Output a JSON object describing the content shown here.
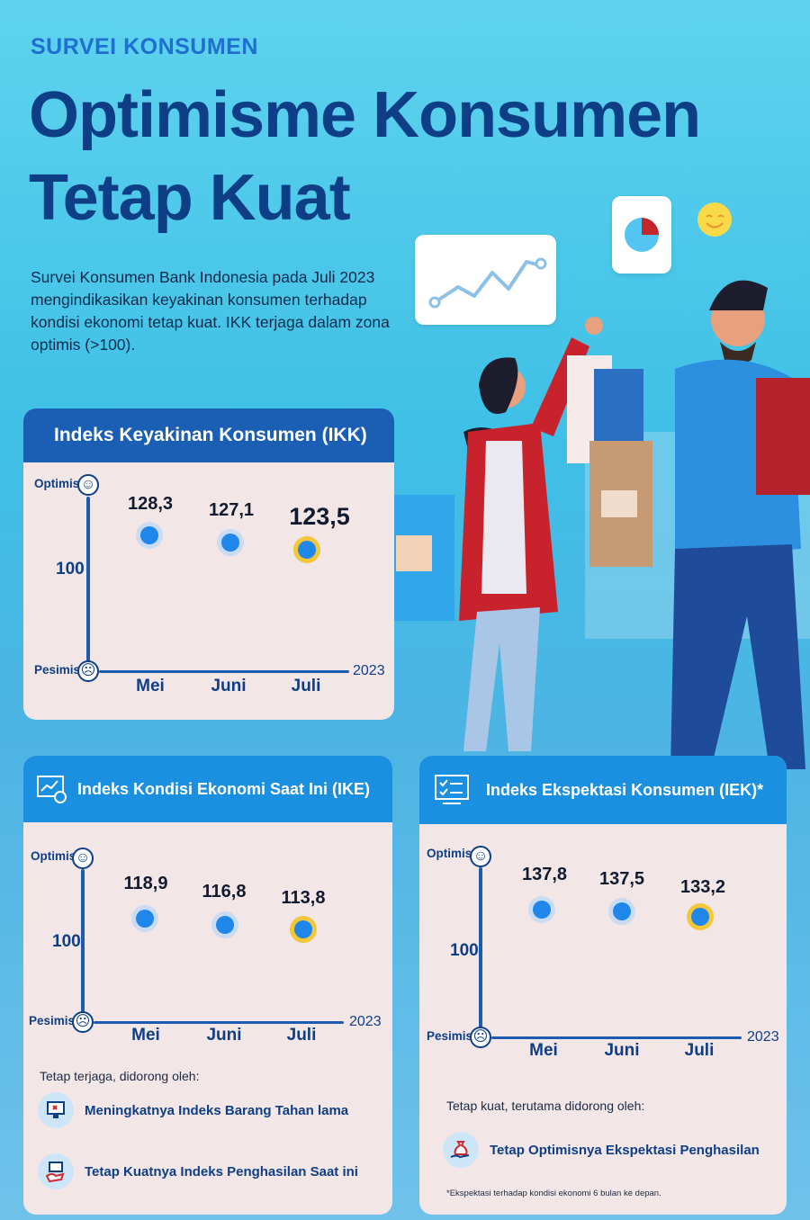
{
  "header": {
    "kicker": "SURVEI KONSUMEN",
    "title_line1": "Optimisme Konsumen",
    "title_line2": "Tetap Kuat",
    "intro": "Survei Konsumen Bank Indonesia pada Juli 2023 mengindikasikan keyakinan konsumen terhadap kondisi ekonomi tetap kuat. IKK terjaga dalam zona optimis (>100)."
  },
  "chart_common": {
    "optimis": "Optimis",
    "pesimis": "Pesimis",
    "baseline": "100",
    "year": "2023",
    "months": [
      "Mei",
      "Juni",
      "Juli"
    ]
  },
  "ikk": {
    "title": "Indeks Keyakinan Konsumen (IKK)",
    "values": [
      "128,3",
      "127,1",
      "123,5"
    ]
  },
  "ike": {
    "title": "Indeks Kondisi Ekonomi Saat Ini (IKE)",
    "values": [
      "118,9",
      "116,8",
      "113,8"
    ],
    "drivers_title": "Tetap terjaga, didorong oleh:",
    "drivers": [
      "Meningkatnya Indeks Barang Tahan lama",
      "Tetap Kuatnya Indeks Penghasilan Saat ini"
    ]
  },
  "iek": {
    "title": "Indeks Ekspektasi Konsumen (IEK)*",
    "values": [
      "137,8",
      "137,5",
      "133,2"
    ],
    "drivers_title": "Tetap kuat, terutama didorong oleh:",
    "drivers": [
      "Tetap Optimisnya Ekspektasi Penghasilan"
    ],
    "footnote": "*Ekspektasi terhadap kondisi ekonomi 6 bulan ke depan."
  },
  "chart_data": [
    {
      "type": "scatter",
      "title": "Indeks Keyakinan Konsumen (IKK)",
      "categories": [
        "Mei",
        "Juni",
        "Juli"
      ],
      "values": [
        128.3,
        127.1,
        123.5
      ],
      "xlabel": "2023",
      "ylabel": ""
    },
    {
      "type": "scatter",
      "title": "Indeks Kondisi Ekonomi Saat Ini (IKE)",
      "categories": [
        "Mei",
        "Juni",
        "Juli"
      ],
      "values": [
        118.9,
        116.8,
        113.8
      ],
      "xlabel": "2023",
      "ylabel": ""
    },
    {
      "type": "scatter",
      "title": "Indeks Ekspektasi Konsumen (IEK)*",
      "categories": [
        "Mei",
        "Juni",
        "Juli"
      ],
      "values": [
        137.8,
        137.5,
        133.2
      ],
      "xlabel": "2023",
      "ylabel": ""
    }
  ],
  "colors": {
    "accent": "#1b8fe0",
    "dark": "#0e3f86",
    "highlight": "#f3c73a",
    "panel": "#f3e6e6"
  }
}
